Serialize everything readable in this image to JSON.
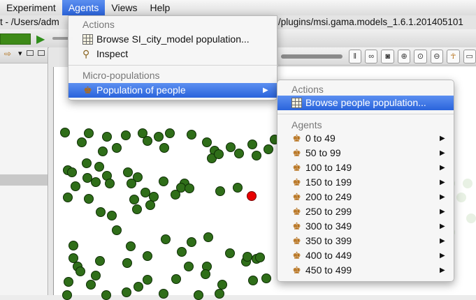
{
  "menubar": {
    "items": [
      {
        "label": "Experiment"
      },
      {
        "label": "Agents"
      },
      {
        "label": "Views"
      },
      {
        "label": "Help"
      }
    ]
  },
  "title_strip": {
    "left": "t - /Users/adm",
    "right": "/plugins/msi.gama.models_1.6.1.201405101"
  },
  "colors": {
    "highlight": "#2a64dc",
    "agent_green": "#2f6e19",
    "agent_red": "#e80000",
    "progress": "#3e8a18"
  },
  "agents_menu": {
    "actions_header": "Actions",
    "browse_label": "Browse SI_city_model population...",
    "inspect_label": "Inspect",
    "micro_header": "Micro-populations",
    "population_label": "Population of people",
    "browse_icon": "table-icon",
    "inspect_icon": "magnifier-icon",
    "population_icon": "person-icon"
  },
  "people_submenu": {
    "actions_header": "Actions",
    "browse_label": "Browse people population...",
    "agents_header": "Agents",
    "ranges": [
      "0 to 49",
      "50 to 99",
      "100 to 149",
      "150 to 199",
      "200 to 249",
      "250 to 299",
      "300 to 349",
      "350 to 399",
      "400 to 449",
      "450 to 499"
    ]
  },
  "view_toolbar": {
    "icons": [
      "pause-icon",
      "link-icon",
      "camera-icon",
      "zoom-in-icon",
      "zoom-fit-icon",
      "zoom-out-icon",
      "person-menu-icon",
      "layout-icon"
    ]
  }
}
